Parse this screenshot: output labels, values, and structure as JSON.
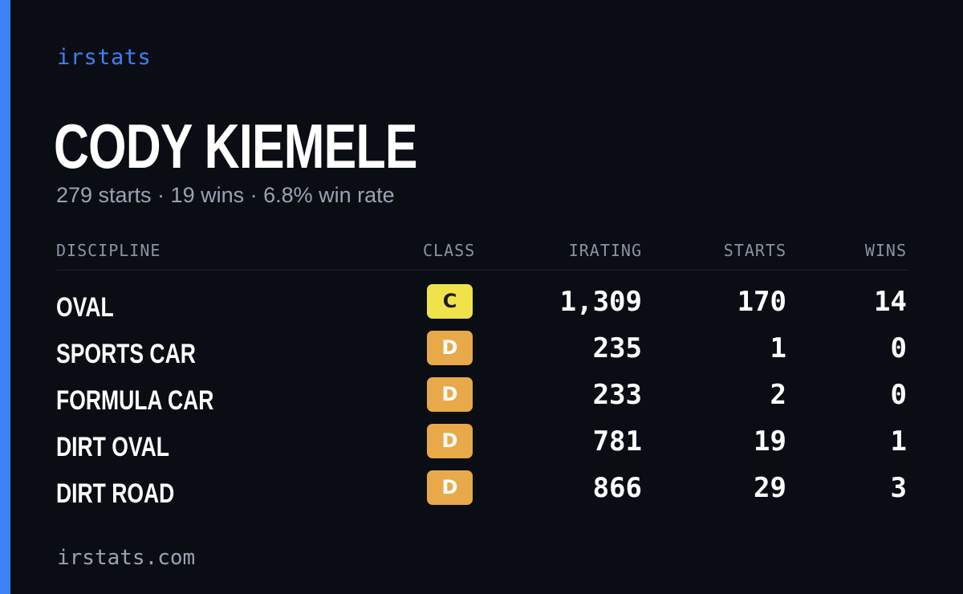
{
  "brand": "irstats",
  "driver_name": "CODY KIEMELE",
  "summary": "279 starts · 19 wins · 6.8% win rate",
  "table": {
    "headers": {
      "discipline": "DISCIPLINE",
      "class": "CLASS",
      "irating": "IRATING",
      "starts": "STARTS",
      "wins": "WINS"
    },
    "rows": [
      {
        "discipline": "OVAL",
        "class": "C",
        "irating": "1,309",
        "starts": "170",
        "wins": "14"
      },
      {
        "discipline": "SPORTS CAR",
        "class": "D",
        "irating": "235",
        "starts": "1",
        "wins": "0"
      },
      {
        "discipline": "FORMULA CAR",
        "class": "D",
        "irating": "233",
        "starts": "2",
        "wins": "0"
      },
      {
        "discipline": "DIRT OVAL",
        "class": "D",
        "irating": "781",
        "starts": "19",
        "wins": "1"
      },
      {
        "discipline": "DIRT ROAD",
        "class": "D",
        "irating": "866",
        "starts": "29",
        "wins": "3"
      }
    ]
  },
  "footer": "irstats.com",
  "colors": {
    "accent": "#3b82f6",
    "class_c": "#f0e24a",
    "class_d": "#e8a94a",
    "background": "#0b0d14"
  }
}
